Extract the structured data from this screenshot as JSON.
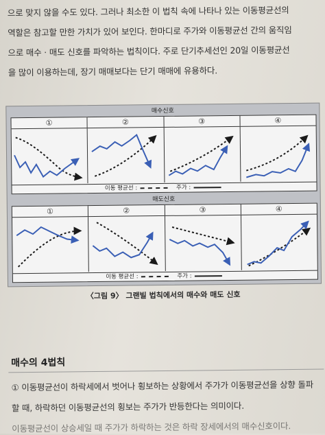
{
  "paragraph": [
    "으로 맞지 않을 수도 있다. 그러나 최소한 이 법칙 속에 나타나 있는 이동평균선의",
    "역할은 참고할 만한 가치가 있어 보인다. 한마디로 주가와 이동평균선 간의 움직임",
    "으로 매수 · 매도 신호를 파악하는 법칙이다. 주로 단기추세선인 20일 이동평균선",
    "을 많이 이용하는데, 장기 매매보다는 단기 매매에 유용하다."
  ],
  "figure": {
    "buy_title": "매수신호",
    "sell_title": "매도신호",
    "numbers": [
      "①",
      "②",
      "③",
      "④"
    ],
    "legend_ma": "이동 평균선 :",
    "legend_price": "주가 :",
    "caption": "〈그림 9〉 그랜빌 법칙에서의 매수와 매도 신호"
  },
  "section": {
    "title": "매수의 4법칙",
    "lines": [
      "① 이동평균선이 하락세에서 벗어나 횡보하는 상황에서 주가가 이동평균선을 상향 돌파",
      "할 때, 하락하던 이동평균선의 횡보는 주가가 반등한다는 의미이다.",
      "이동평균선이 상승세일 때 주가가 하락하는 것은 하락 장세에서의 매수신호이다."
    ]
  },
  "colors": {
    "price_line": "#3a5fb5",
    "ma_line": "#1a1a1a"
  }
}
